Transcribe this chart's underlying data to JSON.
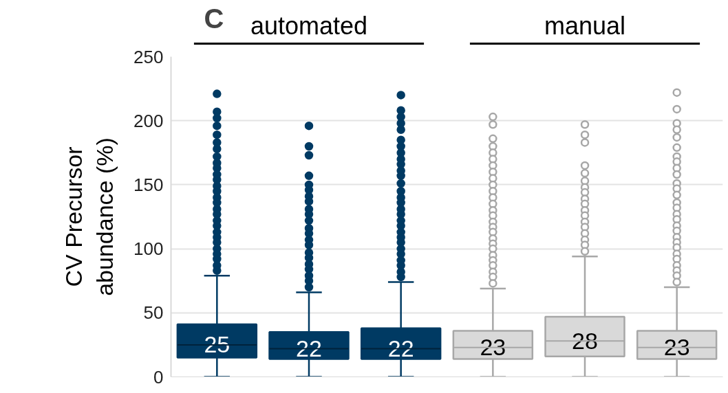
{
  "chart_data": {
    "type": "box",
    "categories": [
      null,
      null,
      null,
      null,
      null,
      null
    ],
    "ylabel": "CV Precursor abundance (%)",
    "ylim": [
      0,
      250
    ],
    "yticks": [
      0,
      50,
      100,
      150,
      200,
      250
    ],
    "grid": "y",
    "marker": "circle",
    "annotations": [
      "C",
      "automated",
      "manual",
      {
        "text": "25",
        "y": 25
      },
      {
        "text": "22",
        "y": 22
      },
      {
        "text": "22",
        "y": 22
      },
      {
        "text": "23",
        "y": 23
      },
      {
        "text": "28",
        "y": 28
      },
      {
        "text": "23",
        "y": 23
      }
    ],
    "colors": [
      "#003a63",
      "#003a63",
      "#003a63",
      "#d9d9d9",
      "#d9d9d9",
      "#d9d9d9"
    ],
    "boxes": [
      {
        "low": 0,
        "q1": 15,
        "median": 25,
        "q3": 41,
        "high": 79,
        "outliers": [
          221,
          207,
          202,
          196,
          189,
          183,
          178,
          172,
          167,
          163,
          158,
          154,
          149,
          145,
          140,
          136,
          131,
          127,
          122,
          118,
          113,
          109,
          105,
          100,
          96,
          92,
          87,
          83
        ]
      },
      {
        "low": 0,
        "q1": 14,
        "median": 22,
        "q3": 35,
        "high": 66,
        "outliers": [
          196,
          180,
          173,
          157,
          150,
          146,
          141,
          137,
          131,
          127,
          122,
          116,
          112,
          107,
          103,
          97,
          93,
          88,
          84,
          79,
          75,
          70
        ]
      },
      {
        "low": 0,
        "q1": 14,
        "median": 22,
        "q3": 38,
        "high": 74,
        "outliers": [
          220,
          208,
          203,
          198,
          193,
          185,
          180,
          175,
          170,
          166,
          161,
          157,
          151,
          145,
          140,
          136,
          131,
          127,
          122,
          118,
          113,
          109,
          105,
          100,
          96,
          91,
          87,
          82,
          78
        ]
      },
      {
        "low": 0,
        "q1": 14,
        "median": 23,
        "q3": 36,
        "high": 69,
        "outliers": [
          203,
          197,
          186,
          180,
          175,
          170,
          165,
          160,
          155,
          150,
          145,
          140,
          135,
          130,
          126,
          121,
          117,
          113,
          108,
          104,
          100,
          95,
          91,
          87,
          82,
          78,
          73
        ]
      },
      {
        "low": 0,
        "q1": 16,
        "median": 28,
        "q3": 47,
        "high": 94,
        "outliers": [
          197,
          189,
          183,
          165,
          159,
          153,
          148,
          144,
          139,
          135,
          130,
          126,
          121,
          117,
          112,
          107,
          103,
          98
        ]
      },
      {
        "low": 0,
        "q1": 14,
        "median": 23,
        "q3": 36,
        "high": 70,
        "outliers": [
          222,
          209,
          198,
          193,
          187,
          179,
          172,
          168,
          163,
          158,
          151,
          147,
          142,
          136,
          132,
          127,
          123,
          118,
          114,
          109,
          105,
          101,
          96,
          92,
          87,
          83,
          79,
          74
        ]
      }
    ]
  }
}
